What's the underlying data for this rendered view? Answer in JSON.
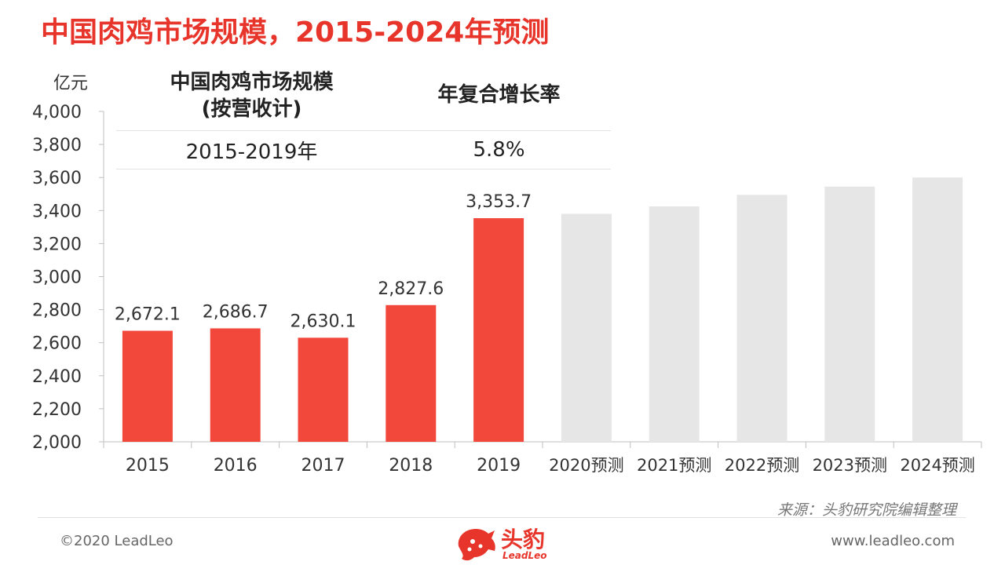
{
  "page": {
    "title": "中国肉鸡市场规模，2015-2024年预测",
    "unit": "亿元",
    "source": "来源：头豹研究院编辑整理",
    "copyright": "©2020 LeadLeo",
    "website": "www.leadleo.com",
    "brand_name": "头豹",
    "brand_sub": "LeadLeo"
  },
  "cagr_table": {
    "header_col1_line1": "中国肉鸡市场规模",
    "header_col1_line2": "(按营收计)",
    "header_col2": "年复合增长率",
    "period": "2015-2019年",
    "rate": "5.8%"
  },
  "colors": {
    "actual": "#f2473b",
    "forecast": "#e6e6e6",
    "accent": "#e8352b"
  },
  "chart_data": {
    "type": "bar",
    "categories": [
      "2015",
      "2016",
      "2017",
      "2018",
      "2019",
      "2020预测",
      "2021预测",
      "2022预测",
      "2023预测",
      "2024预测"
    ],
    "values": [
      2672.1,
      2686.7,
      2630.1,
      2827.6,
      3353.7,
      3380,
      3425,
      3495,
      3545,
      3600
    ],
    "data_labels": [
      "2,672.1",
      "2,686.7",
      "2,630.1",
      "2,827.6",
      "3,353.7",
      null,
      null,
      null,
      null,
      null
    ],
    "forecast": [
      false,
      false,
      false,
      false,
      false,
      true,
      true,
      true,
      true,
      true
    ],
    "ylim": [
      2000,
      4000
    ],
    "yticks": [
      2000,
      2200,
      2400,
      2600,
      2800,
      3000,
      3200,
      3400,
      3600,
      3800,
      4000
    ],
    "ytick_labels": [
      "2,000",
      "2,200",
      "2,400",
      "2,600",
      "2,800",
      "3,000",
      "3,200",
      "3,400",
      "3,600",
      "3,800",
      "4,000"
    ],
    "ylabel": "亿元",
    "grid": false,
    "legend": "none"
  }
}
